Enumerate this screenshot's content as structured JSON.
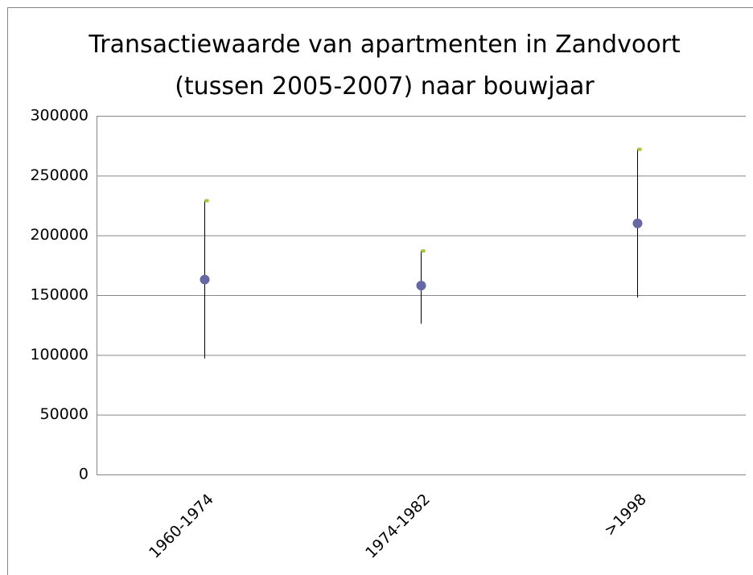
{
  "chart_data": {
    "type": "high-low-close",
    "title": "Transactiewaarde van apartmenten in Zandvoort (tussen 2005-2007) naar bouwjaar",
    "categories": [
      "1960-1974",
      "1974-1982",
      ">1998"
    ],
    "series": [
      {
        "color": "#9acd32",
        "values": [
          229000,
          187000,
          272000
        ]
      },
      {
        "color": "#000000",
        "values": [
          97000,
          126000,
          148000
        ]
      },
      {
        "color": "#6468a4",
        "values": [
          163000,
          158000,
          210000
        ]
      }
    ],
    "ylim": [
      0,
      300000
    ],
    "yticks": [
      0,
      50000,
      100000,
      150000,
      200000,
      250000,
      300000
    ],
    "grid": true
  }
}
